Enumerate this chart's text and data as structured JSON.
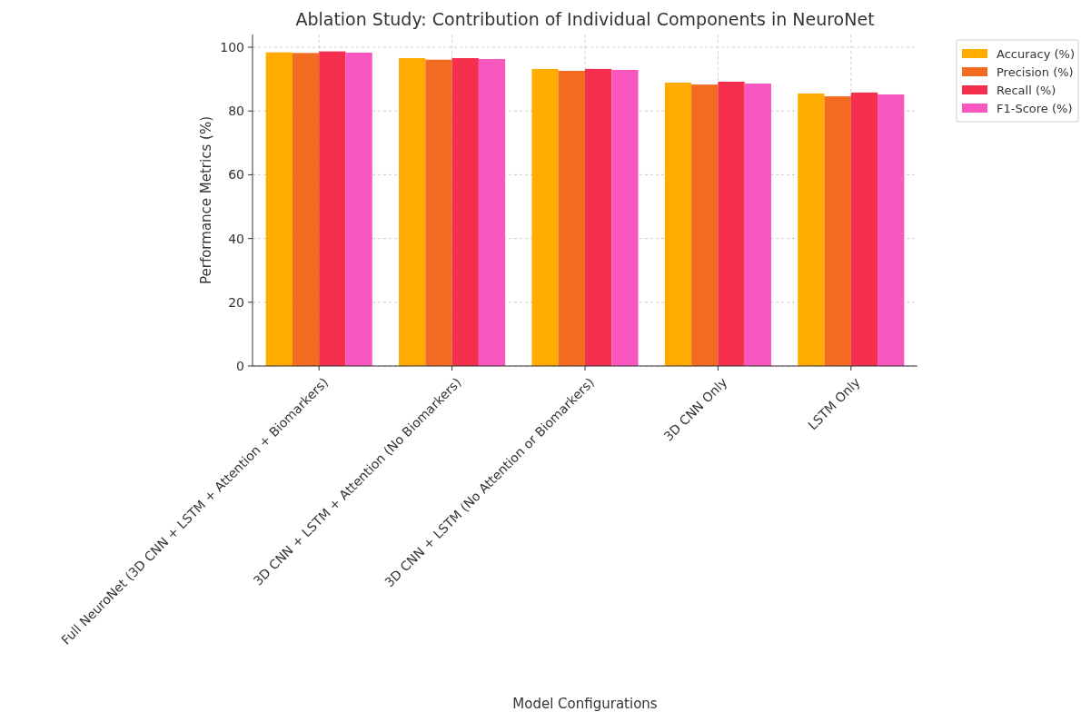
{
  "chart_data": {
    "type": "bar",
    "title": "Ablation Study: Contribution of Individual Components in NeuroNet",
    "xlabel": "Model Configurations",
    "ylabel": "Performance Metrics (%)",
    "categories": [
      "Full NeuroNet (3D CNN + LSTM + Attention + Biomarkers)",
      "3D CNN + LSTM + Attention (No Biomarkers)",
      "3D CNN + LSTM (No Attention or Biomarkers)",
      "3D CNN Only",
      "LSTM Only"
    ],
    "series": [
      {
        "name": "Accuracy (%)",
        "color": "#ffab00",
        "values": [
          98.4,
          96.6,
          93.2,
          88.9,
          85.5
        ]
      },
      {
        "name": "Precision (%)",
        "color": "#f26b21",
        "values": [
          98.2,
          96.1,
          92.6,
          88.3,
          84.6
        ]
      },
      {
        "name": "Recall (%)",
        "color": "#f5304f",
        "values": [
          98.7,
          96.6,
          93.2,
          89.2,
          85.8
        ]
      },
      {
        "name": "F1-Score (%)",
        "color": "#f957c0",
        "values": [
          98.3,
          96.3,
          92.9,
          88.6,
          85.2
        ]
      }
    ],
    "ylim": [
      0,
      104
    ],
    "yticks": [
      0,
      20,
      40,
      60,
      80,
      100
    ],
    "grid": true,
    "legend": "top right"
  }
}
